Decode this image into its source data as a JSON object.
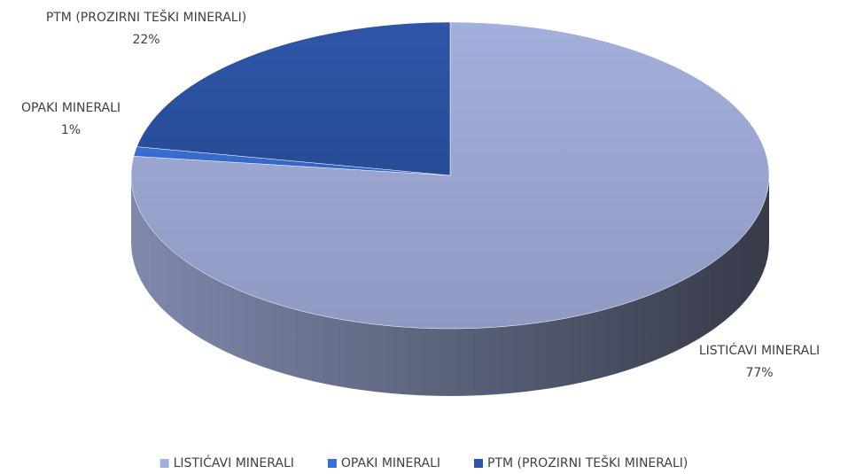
{
  "chart_data": {
    "type": "pie",
    "categories": [
      "LISTIĆAVI MINERALI",
      "OPAKI MINERALI",
      "PTM (PROZIRNI TEŠKI MINERALI)"
    ],
    "values": [
      77,
      1,
      22
    ],
    "value_labels": [
      "77%",
      "1%",
      "22%"
    ],
    "colors": [
      "#a3afdc",
      "#3a6fd6",
      "#2e55a9"
    ],
    "legend": "bottom"
  }
}
